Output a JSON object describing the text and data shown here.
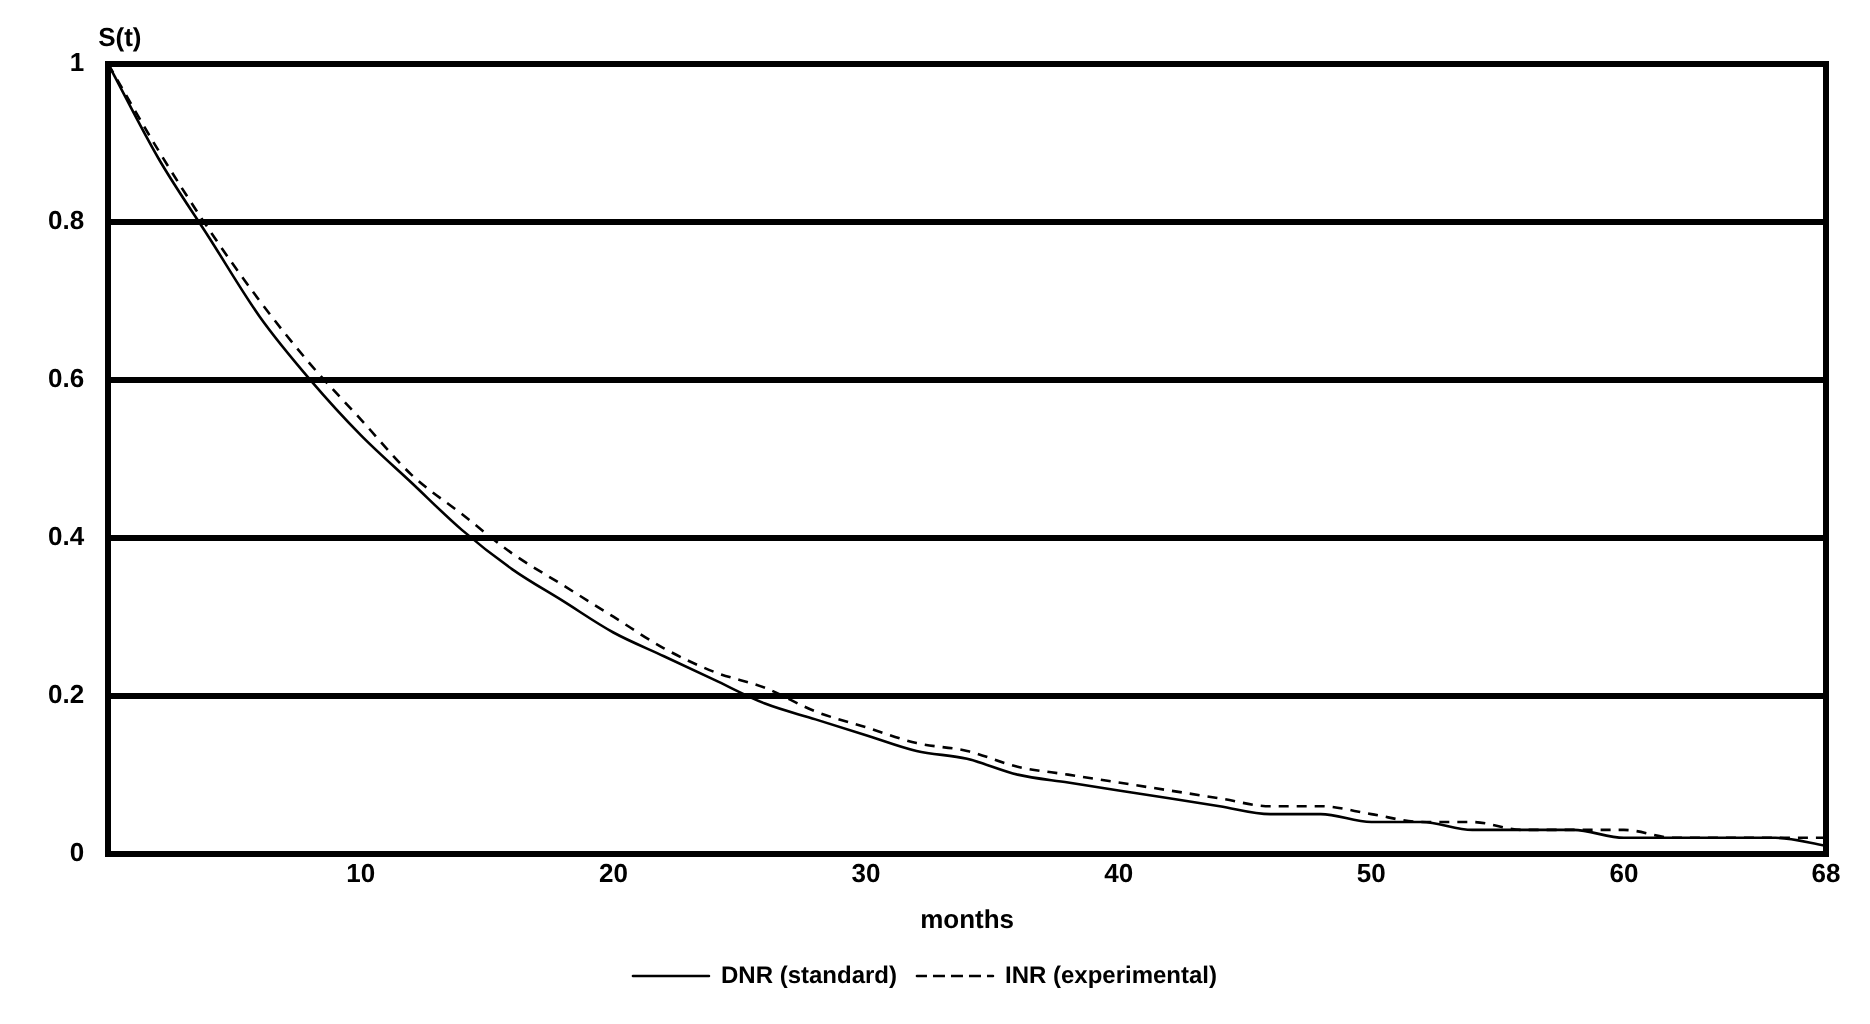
{
  "chart_data": {
    "type": "line",
    "ylabel": "S(t)",
    "xlabel": "months",
    "x": [
      0,
      2,
      4,
      6,
      8,
      10,
      12,
      14,
      16,
      18,
      20,
      22,
      24,
      26,
      28,
      30,
      32,
      34,
      36,
      38,
      40,
      42,
      44,
      46,
      48,
      50,
      52,
      54,
      56,
      58,
      60,
      62,
      64,
      66,
      68
    ],
    "series": [
      {
        "name": "DNR (standard)",
        "color": "#000000",
        "line_style": "solid",
        "values": [
          1,
          0.88,
          0.78,
          0.68,
          0.6,
          0.53,
          0.47,
          0.41,
          0.36,
          0.32,
          0.28,
          0.25,
          0.22,
          0.19,
          0.17,
          0.15,
          0.13,
          0.12,
          0.1,
          0.09,
          0.08,
          0.07,
          0.06,
          0.05,
          0.05,
          0.04,
          0.04,
          0.03,
          0.03,
          0.03,
          0.02,
          0.02,
          0.02,
          0.02,
          0.01
        ]
      },
      {
        "name": "INR (experimental)",
        "color": "#000000",
        "line_style": "dashed",
        "values": [
          1,
          0.89,
          0.79,
          0.7,
          0.62,
          0.55,
          0.48,
          0.43,
          0.38,
          0.34,
          0.3,
          0.26,
          0.23,
          0.21,
          0.18,
          0.16,
          0.14,
          0.13,
          0.11,
          0.1,
          0.09,
          0.08,
          0.07,
          0.06,
          0.06,
          0.05,
          0.04,
          0.04,
          0.03,
          0.03,
          0.03,
          0.02,
          0.02,
          0.02,
          0.02
        ]
      }
    ],
    "xlim": [
      0,
      68
    ],
    "xticks": [
      10,
      20,
      30,
      40,
      50,
      60,
      68
    ],
    "ylim": [
      0,
      1
    ],
    "yticks": [
      0,
      0.2,
      0.4,
      0.6,
      0.8,
      1
    ],
    "grid": "y",
    "legend": "bottom",
    "marker": "none"
  }
}
